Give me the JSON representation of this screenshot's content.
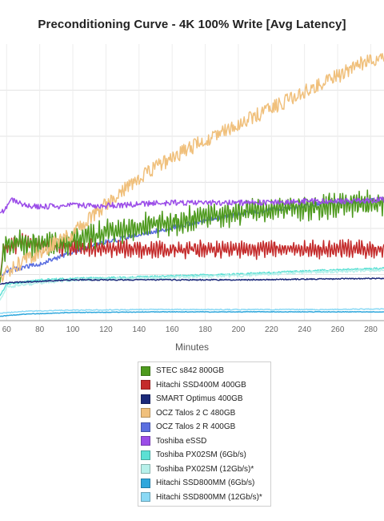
{
  "chart_data": {
    "type": "line",
    "title": "Preconditioning Curve - 4K 100% Write [Avg Latency]",
    "xlabel": "Minutes",
    "ylabel": "",
    "xlim": [
      56,
      288
    ],
    "x_ticks": [
      60,
      80,
      100,
      120,
      140,
      160,
      180,
      200,
      220,
      240,
      260,
      280
    ],
    "grid": true,
    "legend_position": "bottom-center",
    "series": [
      {
        "name": "STEC s842 800GB",
        "color": "#4e9a1e",
        "noise": 0.5,
        "points": [
          [
            56,
            4.2
          ],
          [
            58,
            5.3
          ],
          [
            60,
            5.5
          ],
          [
            80,
            5.55
          ],
          [
            100,
            5.65
          ],
          [
            120,
            5.95
          ],
          [
            140,
            6.15
          ],
          [
            160,
            6.25
          ],
          [
            180,
            6.45
          ],
          [
            200,
            6.6
          ],
          [
            220,
            6.7
          ],
          [
            240,
            6.8
          ],
          [
            260,
            6.85
          ],
          [
            288,
            6.95
          ]
        ]
      },
      {
        "name": "Hitachi SSD400M 400GB",
        "color": "#c42b2b",
        "noise": 0.35,
        "points": [
          [
            56,
            4.3
          ],
          [
            58,
            5.35
          ],
          [
            70,
            5.6
          ],
          [
            100,
            5.4
          ],
          [
            140,
            5.35
          ],
          [
            180,
            5.35
          ],
          [
            220,
            5.35
          ],
          [
            260,
            5.35
          ],
          [
            288,
            5.35
          ]
        ]
      },
      {
        "name": "SMART Optimus 400GB",
        "color": "#1c2a7a",
        "noise": 0.02,
        "points": [
          [
            56,
            4.15
          ],
          [
            60,
            4.2
          ],
          [
            80,
            4.25
          ],
          [
            100,
            4.3
          ],
          [
            200,
            4.3
          ],
          [
            288,
            4.35
          ]
        ]
      },
      {
        "name": "OCZ Talos 2 C 480GB",
        "color": "#f0c07c",
        "noise": 0.25,
        "points": [
          [
            56,
            4.4
          ],
          [
            60,
            4.6
          ],
          [
            80,
            5.25
          ],
          [
            100,
            5.9
          ],
          [
            120,
            6.9
          ],
          [
            140,
            7.8
          ],
          [
            160,
            8.5
          ],
          [
            180,
            9.1
          ],
          [
            200,
            9.65
          ],
          [
            220,
            10.2
          ],
          [
            240,
            10.75
          ],
          [
            260,
            11.3
          ],
          [
            280,
            11.9
          ],
          [
            288,
            11.95
          ]
        ]
      },
      {
        "name": "OCZ Talos 2 R 400GB",
        "color": "#5b6fe0",
        "noise": 0.08,
        "points": [
          [
            56,
            4.4
          ],
          [
            60,
            4.6
          ],
          [
            80,
            4.85
          ],
          [
            100,
            5.25
          ],
          [
            120,
            5.6
          ],
          [
            140,
            5.85
          ],
          [
            160,
            6.1
          ],
          [
            180,
            6.35
          ],
          [
            200,
            6.55
          ],
          [
            220,
            6.7
          ],
          [
            240,
            6.85
          ],
          [
            260,
            6.95
          ],
          [
            288,
            7.05
          ]
        ]
      },
      {
        "name": "Toshiba eSSD",
        "color": "#9b4de8",
        "noise": 0.1,
        "points": [
          [
            56,
            6.6
          ],
          [
            60,
            6.75
          ],
          [
            62,
            7.05
          ],
          [
            66,
            7.0
          ],
          [
            72,
            6.85
          ],
          [
            80,
            6.8
          ],
          [
            100,
            6.85
          ],
          [
            120,
            6.85
          ],
          [
            140,
            6.9
          ],
          [
            160,
            6.95
          ],
          [
            180,
            6.95
          ],
          [
            200,
            6.95
          ],
          [
            220,
            6.95
          ],
          [
            240,
            7.0
          ],
          [
            260,
            7.0
          ],
          [
            288,
            7.05
          ]
        ]
      },
      {
        "name": "Toshiba PX02SM (6Gb/s)",
        "color": "#5ce0d4",
        "noise": 0.03,
        "points": [
          [
            56,
            3.75
          ],
          [
            60,
            4.15
          ],
          [
            80,
            4.3
          ],
          [
            100,
            4.35
          ],
          [
            140,
            4.4
          ],
          [
            200,
            4.5
          ],
          [
            240,
            4.6
          ],
          [
            288,
            4.7
          ]
        ]
      },
      {
        "name": "Toshiba PX02SM (12Gb/s)*",
        "color": "#b7f0ea",
        "noise": 0.05,
        "points": [
          [
            56,
            3.6
          ],
          [
            60,
            4.05
          ],
          [
            80,
            4.2
          ],
          [
            100,
            4.3
          ],
          [
            140,
            4.35
          ],
          [
            200,
            4.45
          ],
          [
            240,
            4.55
          ],
          [
            288,
            4.65
          ]
        ]
      },
      {
        "name": "Hitachi SSD800MM (6Gb/s)",
        "color": "#2fa7dc",
        "noise": 0.01,
        "points": [
          [
            56,
            3.05
          ],
          [
            70,
            3.12
          ],
          [
            100,
            3.18
          ],
          [
            150,
            3.2
          ],
          [
            200,
            3.2
          ],
          [
            250,
            3.2
          ],
          [
            288,
            3.2
          ]
        ]
      },
      {
        "name": "Hitachi SSD800MM (12Gb/s)*",
        "color": "#8ad9f5",
        "noise": 0.015,
        "points": [
          [
            56,
            3.15
          ],
          [
            70,
            3.22
          ],
          [
            100,
            3.26
          ],
          [
            150,
            3.28
          ],
          [
            200,
            3.28
          ],
          [
            250,
            3.28
          ],
          [
            288,
            3.3
          ]
        ]
      }
    ]
  }
}
